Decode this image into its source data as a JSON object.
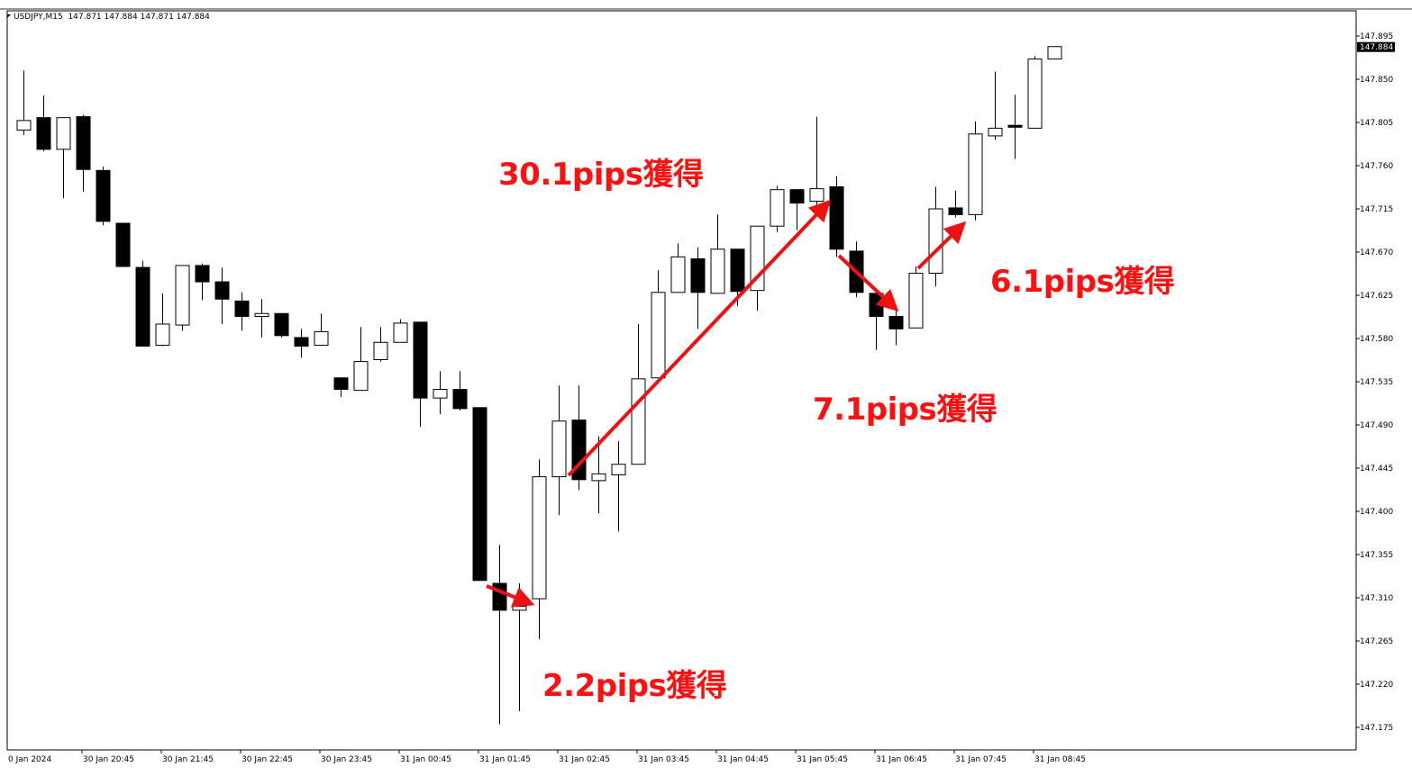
{
  "header": {
    "symbol": "USDJPY,M15",
    "ohlc": "147.871 147.884 147.871 147.884"
  },
  "annotations": [
    {
      "text": "2.2pips獲得"
    },
    {
      "text": "30.1pips獲得"
    },
    {
      "text": "7.1pips獲得"
    },
    {
      "text": "6.1pips獲得"
    }
  ],
  "colors": {
    "annotation": "#ff1010",
    "bull_body": "#ffffff",
    "bear_body": "#000000"
  },
  "chart_data": {
    "type": "candlestick",
    "title": "USDJPY,M15",
    "ylim": [
      147.175,
      147.895
    ],
    "y_ticks": [
      "147.895",
      "147.850",
      "147.805",
      "147.760",
      "147.715",
      "147.670",
      "147.625",
      "147.580",
      "147.535",
      "147.490",
      "147.445",
      "147.400",
      "147.355",
      "147.310",
      "147.265",
      "147.220",
      "147.175"
    ],
    "current_price": "147.884",
    "x_tick_labels": [
      "0 Jan 2024",
      "30 Jan 20:45",
      "30 Jan 21:45",
      "30 Jan 22:45",
      "30 Jan 23:45",
      "31 Jan 00:45",
      "31 Jan 01:45",
      "31 Jan 02:45",
      "31 Jan 03:45",
      "31 Jan 04:45",
      "31 Jan 05:45",
      "31 Jan 06:45",
      "31 Jan 07:45",
      "31 Jan 08:45"
    ],
    "grid": false,
    "candles": [
      [
        147.797,
        147.859,
        147.792,
        147.807
      ],
      [
        147.81,
        147.833,
        147.775,
        147.777
      ],
      [
        147.777,
        147.81,
        147.726,
        147.81
      ],
      [
        147.811,
        147.813,
        147.733,
        147.756
      ],
      [
        147.755,
        147.759,
        147.698,
        147.702
      ],
      [
        147.7,
        147.7,
        147.655,
        147.655
      ],
      [
        147.654,
        147.661,
        147.572,
        147.572
      ],
      [
        147.573,
        147.627,
        147.572,
        147.595
      ],
      [
        147.594,
        147.656,
        147.588,
        147.656
      ],
      [
        147.656,
        147.658,
        147.62,
        147.639
      ],
      [
        147.639,
        147.654,
        147.595,
        147.621
      ],
      [
        147.619,
        147.628,
        147.588,
        147.603
      ],
      [
        147.603,
        147.621,
        147.581,
        147.606
      ],
      [
        147.606,
        147.606,
        147.581,
        147.583
      ],
      [
        147.581,
        147.59,
        147.56,
        147.572
      ],
      [
        147.573,
        147.606,
        147.573,
        147.587
      ],
      [
        147.539,
        147.539,
        147.519,
        147.527
      ],
      [
        147.526,
        147.592,
        147.526,
        147.556
      ],
      [
        147.558,
        147.592,
        147.556,
        147.576
      ],
      [
        147.576,
        147.6,
        147.576,
        147.596
      ],
      [
        147.597,
        147.597,
        147.488,
        147.518
      ],
      [
        147.518,
        147.546,
        147.501,
        147.527
      ],
      [
        147.527,
        147.546,
        147.505,
        147.507
      ],
      [
        147.508,
        147.508,
        147.328,
        147.328
      ],
      [
        147.325,
        147.365,
        147.178,
        147.297
      ],
      [
        147.297,
        147.325,
        147.192,
        147.301
      ],
      [
        147.309,
        147.454,
        147.267,
        147.436
      ],
      [
        147.436,
        147.531,
        147.396,
        147.494
      ],
      [
        147.495,
        147.531,
        147.422,
        147.433
      ],
      [
        147.432,
        147.478,
        147.398,
        147.439
      ],
      [
        147.438,
        147.473,
        147.379,
        147.449
      ],
      [
        147.449,
        147.595,
        147.449,
        147.538
      ],
      [
        147.539,
        147.651,
        147.539,
        147.628
      ],
      [
        147.628,
        147.679,
        147.628,
        147.665
      ],
      [
        147.663,
        147.675,
        147.59,
        147.628
      ],
      [
        147.627,
        147.709,
        147.627,
        147.673
      ],
      [
        147.673,
        147.673,
        147.614,
        147.629
      ],
      [
        147.63,
        147.697,
        147.609,
        147.697
      ],
      [
        147.697,
        147.739,
        147.691,
        147.735
      ],
      [
        147.735,
        147.735,
        147.693,
        147.721
      ],
      [
        147.723,
        147.811,
        147.717,
        147.736
      ],
      [
        147.738,
        147.749,
        147.665,
        147.673
      ],
      [
        147.671,
        147.681,
        147.623,
        147.628
      ],
      [
        147.627,
        147.627,
        147.568,
        147.603
      ],
      [
        147.603,
        147.612,
        147.573,
        147.59
      ],
      [
        147.591,
        147.655,
        147.591,
        147.648
      ],
      [
        147.648,
        147.738,
        147.634,
        147.715
      ],
      [
        147.716,
        147.734,
        147.706,
        147.709
      ],
      [
        147.709,
        147.806,
        147.703,
        147.793
      ],
      [
        147.791,
        147.858,
        147.787,
        147.799
      ],
      [
        147.802,
        147.834,
        147.767,
        147.8
      ],
      [
        147.799,
        147.874,
        147.799,
        147.871
      ],
      [
        147.871,
        147.884,
        147.871,
        147.884
      ]
    ]
  }
}
